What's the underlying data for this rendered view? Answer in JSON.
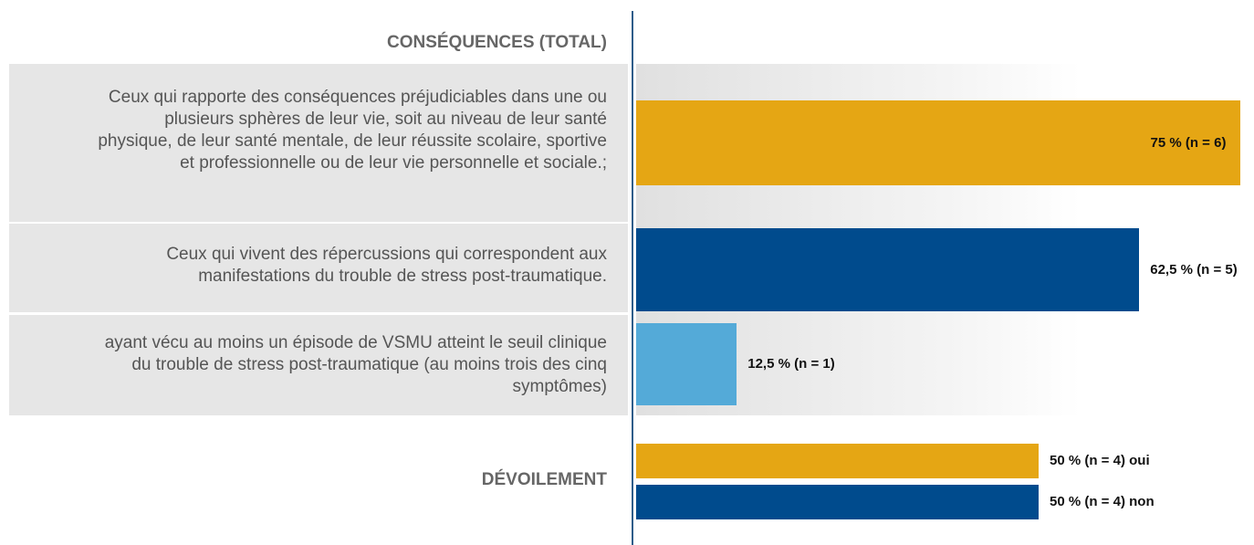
{
  "chart_data": {
    "type": "barh",
    "sections": [
      {
        "title": "CONSÉQUENCES (TOTAL)",
        "categories": [
          "Ceux qui rapporte des conséquences préjudiciables dans une ou plusieurs sphères de leur vie, soit au niveau de leur santé physique, de leur santé mentale, de leur réussite scolaire, sportive et professionnelle ou de leur vie personnelle et sociale.;",
          "Ceux qui vivent des répercussions qui correspondent aux manifestations du trouble de stress post-traumatique.",
          "ayant vécu au moins un épisode de VSMU atteint le seuil clinique du trouble de stress post-traumatique (au moins trois des cinq symptômes)"
        ],
        "values": [
          75,
          62.5,
          12.5
        ],
        "value_labels": [
          "75 % (n = 6)",
          "62,5 % (n = 5)",
          "12,5 % (n = 1)"
        ],
        "colors": [
          "#e5a614",
          "#004b8d",
          "#54aad8"
        ]
      },
      {
        "title": "DÉVOILEMENT",
        "values": [
          50,
          50
        ],
        "value_labels": [
          "50 % (n = 4) oui",
          "50 % (n = 4) non"
        ],
        "colors": [
          "#e5a614",
          "#004b8d"
        ]
      }
    ]
  }
}
